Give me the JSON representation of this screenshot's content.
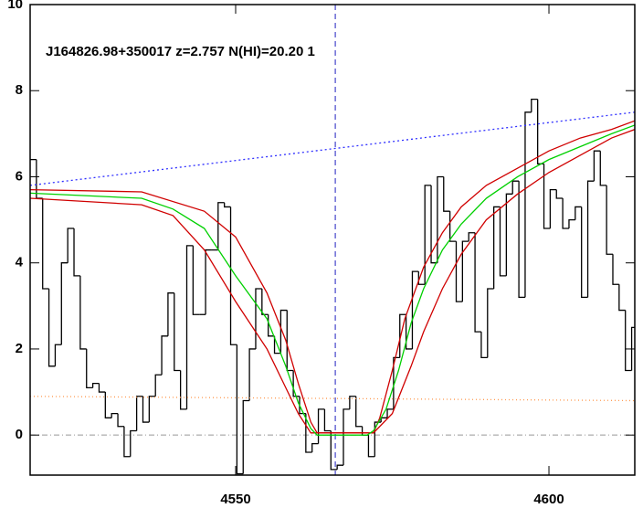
{
  "chart_data": {
    "type": "step",
    "title": "J164826.98+350017 z=2.757 N(HI)=20.20 1",
    "xlim": [
      4517.2,
      4613.7
    ],
    "ylim": [
      -0.93,
      10
    ],
    "xticks": [
      4550,
      4600
    ],
    "yticks": [
      0,
      2,
      4,
      6,
      8,
      10
    ],
    "vline": 4565.9,
    "reference_line": 0,
    "series": [
      {
        "name": "flux",
        "type": "step",
        "color": "#000000",
        "x": [
          4517.7,
          4518.7,
          4519.7,
          4520.7,
          4521.7,
          4522.7,
          4523.7,
          4524.7,
          4525.7,
          4526.7,
          4527.7,
          4528.7,
          4529.7,
          4530.7,
          4531.7,
          4532.7,
          4533.7,
          4534.7,
          4535.7,
          4536.7,
          4537.7,
          4538.7,
          4539.7,
          4540.7,
          4541.7,
          4542.7,
          4543.7,
          4544.7,
          4545.7,
          4546.7,
          4547.7,
          4548.7,
          4549.7,
          4550.7,
          4551.7,
          4552.7,
          4553.7,
          4554.7,
          4555.7,
          4556.7,
          4557.7,
          4558.7,
          4559.7,
          4560.7,
          4561.7,
          4562.7,
          4563.7,
          4564.7,
          4565.7,
          4566.7,
          4567.7,
          4568.7,
          4569.7,
          4570.7,
          4571.7,
          4572.7,
          4573.7,
          4574.7,
          4575.7,
          4576.7,
          4577.7,
          4578.7,
          4579.7,
          4580.7,
          4581.7,
          4582.7,
          4583.7,
          4584.7,
          4585.7,
          4586.7,
          4587.7,
          4588.7,
          4589.7,
          4590.7,
          4591.7,
          4592.7,
          4593.7,
          4594.7,
          4595.7,
          4596.7,
          4597.7,
          4598.7,
          4599.7,
          4600.7,
          4601.7,
          4602.7,
          4603.7,
          4604.7,
          4605.7,
          4606.7,
          4607.7,
          4608.7,
          4609.7,
          4610.7,
          4611.7,
          4612.7,
          4613.7
        ],
        "values": [
          6.4,
          5.5,
          3.4,
          1.6,
          2.1,
          4.0,
          4.8,
          3.7,
          2.0,
          1.1,
          1.2,
          1.0,
          0.4,
          0.5,
          0.2,
          -0.5,
          0.1,
          0.9,
          0.3,
          0.9,
          1.4,
          2.3,
          3.3,
          1.5,
          0.6,
          4.4,
          2.8,
          2.8,
          4.3,
          4.3,
          5.4,
          5.3,
          2.1,
          -0.9,
          0.8,
          2.0,
          3.4,
          2.8,
          2.3,
          1.9,
          2.9,
          1.5,
          0.9,
          0.5,
          -0.4,
          -0.2,
          0.6,
          0.1,
          -0.8,
          -0.7,
          0.6,
          0.9,
          0.2,
          0.0,
          -0.5,
          0.3,
          0.4,
          0.6,
          1.8,
          2.8,
          2.0,
          3.8,
          3.5,
          5.8,
          4.0,
          6.0,
          5.2,
          4.5,
          3.1,
          4.5,
          4.7,
          2.4,
          1.8,
          3.4,
          5.3,
          3.7,
          5.6,
          5.9,
          3.2,
          7.5,
          7.8,
          6.3,
          4.8,
          5.7,
          5.5,
          4.8,
          5.0,
          5.3,
          3.2,
          5.9,
          6.6,
          5.8,
          4.2,
          3.5,
          2.9,
          1.5,
          2.5
        ]
      },
      {
        "name": "continuum",
        "type": "line",
        "color": "#3030ff",
        "dash": "2,3",
        "x": [
          4517.2,
          4613.7
        ],
        "values": [
          5.8,
          7.5
        ]
      },
      {
        "name": "error",
        "type": "line",
        "color": "#ff9a50",
        "dash": "1,3",
        "x": [
          4517.2,
          4613.7
        ],
        "values": [
          0.9,
          0.8
        ]
      },
      {
        "name": "model-high",
        "type": "line",
        "color": "#d00000",
        "x": [
          4517.2,
          4535,
          4545,
          4550,
          4555,
          4558,
          4560,
          4562,
          4563,
          4572,
          4573,
          4575,
          4577,
          4580,
          4583,
          4586,
          4590,
          4595,
          4600,
          4605,
          4610,
          4613.7
        ],
        "values": [
          5.7,
          5.65,
          5.2,
          4.6,
          3.3,
          2.2,
          1.2,
          0.3,
          0.05,
          0.05,
          0.4,
          1.5,
          2.7,
          3.9,
          4.7,
          5.3,
          5.8,
          6.2,
          6.6,
          6.9,
          7.1,
          7.3
        ]
      },
      {
        "name": "model-low",
        "type": "line",
        "color": "#d00000",
        "x": [
          4517.2,
          4535,
          4540,
          4545,
          4550,
          4555,
          4558,
          4560,
          4562,
          4572,
          4575,
          4578,
          4580,
          4583,
          4586,
          4590,
          4595,
          4600,
          4605,
          4610,
          4613.7
        ],
        "values": [
          5.5,
          5.35,
          5.1,
          4.3,
          3.1,
          2.0,
          1.1,
          0.5,
          0.05,
          0.05,
          0.5,
          1.6,
          2.4,
          3.4,
          4.2,
          5.0,
          5.6,
          6.1,
          6.5,
          6.9,
          7.1
        ]
      },
      {
        "name": "model",
        "type": "line",
        "color": "#00d000",
        "x": [
          4517.2,
          4535,
          4540,
          4545,
          4550,
          4555,
          4558,
          4560,
          4562,
          4563,
          4571,
          4572,
          4574,
          4576,
          4578,
          4580,
          4583,
          4586,
          4590,
          4595,
          4600,
          4605,
          4610,
          4613.7
        ],
        "values": [
          5.62,
          5.5,
          5.25,
          4.8,
          3.7,
          2.7,
          1.6,
          0.75,
          0.15,
          0,
          0,
          0.1,
          0.6,
          1.5,
          2.6,
          3.4,
          4.3,
          4.9,
          5.5,
          6.0,
          6.4,
          6.7,
          7.0,
          7.2
        ]
      }
    ]
  }
}
